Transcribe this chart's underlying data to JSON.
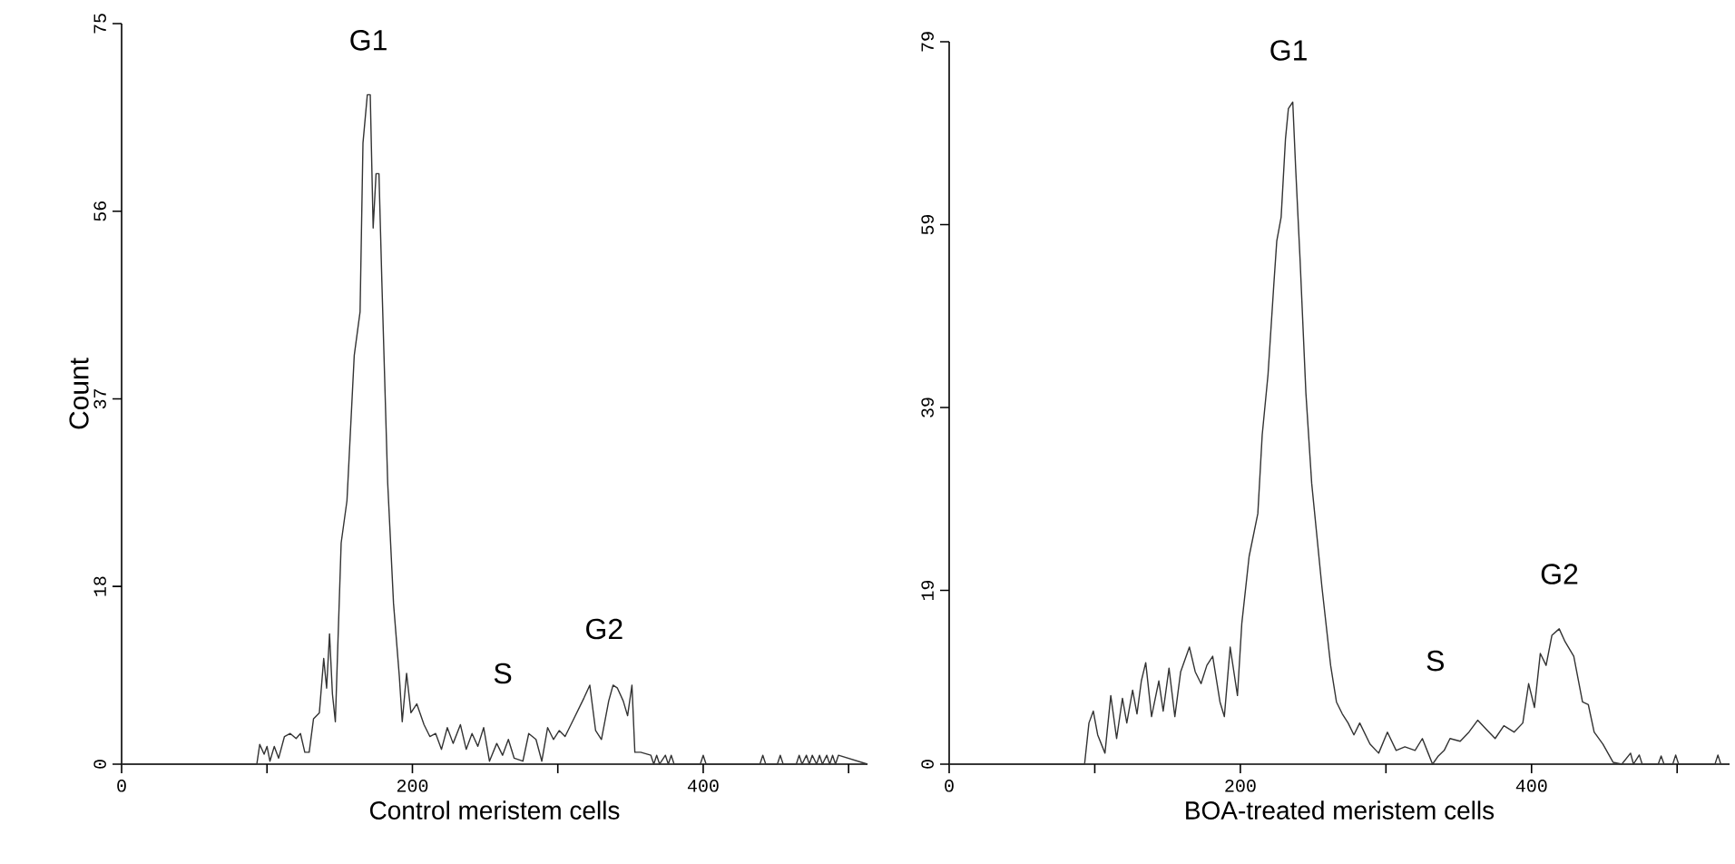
{
  "chart_data": [
    {
      "type": "line",
      "xlabel": "Control meristem cells",
      "ylabel": "Count",
      "x": [
        0,
        93,
        95,
        98,
        100,
        102,
        105,
        108,
        112,
        116,
        120,
        123,
        126,
        129,
        132,
        136,
        139,
        141,
        143,
        145,
        147,
        151,
        155,
        160,
        164,
        166,
        169,
        171,
        173,
        175,
        177,
        179,
        183,
        187,
        191,
        193,
        196,
        199,
        203,
        208,
        212,
        216,
        220,
        224,
        228,
        233,
        237,
        241,
        245,
        249,
        253,
        258,
        262,
        266,
        270,
        276,
        280,
        285,
        289,
        293,
        297,
        301,
        305,
        310,
        314,
        318,
        322,
        326,
        330,
        335,
        338,
        341,
        345,
        348,
        351,
        353,
        357,
        364,
        366,
        368,
        370,
        374,
        376,
        378,
        380,
        398,
        400,
        402,
        439,
        441,
        443,
        451,
        453,
        455,
        464,
        466,
        468,
        471,
        473,
        475,
        478,
        480,
        482,
        485,
        487,
        489,
        491,
        493,
        513
      ],
      "series": [
        {
          "color": "#333333",
          "values": [
            0,
            0,
            2,
            1,
            1.8,
            0.3,
            1.8,
            0.6,
            2.8,
            3.1,
            2.6,
            3.1,
            1.2,
            1.2,
            4.6,
            5.2,
            10.7,
            7.7,
            13.2,
            7.1,
            4.3,
            22.4,
            26.7,
            41.4,
            45.8,
            62.9,
            67.8,
            67.8,
            54.3,
            59.8,
            59.8,
            48.8,
            28.5,
            16.3,
            8.9,
            4.3,
            9.2,
            5.2,
            6.1,
            4,
            2.8,
            3.1,
            1.5,
            3.7,
            2.1,
            4,
            1.5,
            3.1,
            1.8,
            3.7,
            0.3,
            2.1,
            0.9,
            2.5,
            0.6,
            0.3,
            3.1,
            2.5,
            0.3,
            3.7,
            2.5,
            3.4,
            2.8,
            4.3,
            5.5,
            6.7,
            8,
            3.4,
            2.5,
            6.4,
            8,
            7.7,
            6.4,
            4.9,
            8,
            1.2,
            1.2,
            0.9,
            0,
            0.9,
            0,
            0.9,
            0,
            0.9,
            0,
            0,
            0.9,
            0,
            0,
            0.9,
            0,
            0,
            0.9,
            0,
            0,
            0.9,
            0,
            0.9,
            0,
            0.9,
            0,
            0.9,
            0,
            0.9,
            0,
            0.9,
            0,
            0.9,
            0
          ]
        }
      ],
      "xlim": [
        0,
        513
      ],
      "ylim": [
        0,
        75
      ],
      "xticks": [
        0,
        {
          "value": 100,
          "label": null
        },
        200,
        {
          "value": 300,
          "label": null
        },
        400,
        {
          "value": 500,
          "label": null
        }
      ],
      "yticks": [
        0,
        18,
        37,
        56,
        75
      ],
      "annotations": [
        "G1",
        "S",
        "G2"
      ]
    },
    {
      "type": "line",
      "xlabel": "BOA-treated meristem cells",
      "x": [
        0,
        93,
        96,
        99,
        102,
        107,
        111,
        115,
        119,
        122,
        126,
        129,
        132,
        135,
        139,
        144,
        147,
        151,
        155,
        159,
        165,
        169,
        173,
        177,
        181,
        186,
        189,
        193,
        198,
        201,
        206,
        212,
        215,
        219,
        223,
        225,
        228,
        231,
        233,
        236,
        238,
        241,
        245,
        249,
        256,
        262,
        266,
        270,
        274,
        278,
        282,
        289,
        295,
        301,
        307,
        313,
        320,
        325,
        329,
        332,
        336,
        340,
        344,
        351,
        357,
        363,
        369,
        375,
        381,
        388,
        394,
        398,
        402,
        406,
        410,
        414,
        419,
        423,
        429,
        435,
        439,
        443,
        449,
        456,
        462,
        468,
        470,
        474,
        476,
        487,
        489,
        491,
        497,
        499,
        501,
        526,
        528,
        530,
        536
      ],
      "series": [
        {
          "color": "#333333",
          "values": [
            0,
            0,
            4.5,
            5.8,
            3.2,
            1.2,
            7.5,
            2.8,
            7.2,
            4.5,
            8.1,
            5.5,
            9.1,
            11.1,
            5.2,
            9.1,
            5.8,
            10.5,
            5.2,
            10.1,
            12.8,
            10.1,
            8.8,
            10.8,
            11.8,
            6.8,
            5.2,
            12.8,
            7.5,
            15.4,
            22.7,
            27.4,
            36,
            42.6,
            52.5,
            57.2,
            59.8,
            68.4,
            71.7,
            72.4,
            65.1,
            55.2,
            40.6,
            30.7,
            19.4,
            10.8,
            6.8,
            5.5,
            4.5,
            3.2,
            4.5,
            2.2,
            1.2,
            3.5,
            1.5,
            1.9,
            1.5,
            2.8,
            1.2,
            0,
            0.9,
            1.5,
            2.8,
            2.5,
            3.5,
            4.8,
            3.8,
            2.8,
            4.2,
            3.5,
            4.5,
            8.8,
            6.2,
            12.1,
            10.8,
            14.1,
            14.8,
            13.4,
            11.8,
            6.8,
            6.5,
            3.5,
            2.2,
            0.2,
            0,
            1.2,
            0,
            1,
            0,
            0,
            0.9,
            0,
            0,
            1,
            0,
            0,
            1,
            0,
            0
          ]
        }
      ],
      "xlim": [
        0,
        536
      ],
      "ylim": [
        0,
        79
      ],
      "xticks": [
        0,
        {
          "value": 100,
          "label": null
        },
        200,
        {
          "value": 300,
          "label": null
        },
        400,
        {
          "value": 500,
          "label": null
        }
      ],
      "yticks": [
        0,
        19,
        39,
        59,
        79
      ],
      "annotations": [
        "G1",
        "S",
        "G2"
      ]
    }
  ]
}
